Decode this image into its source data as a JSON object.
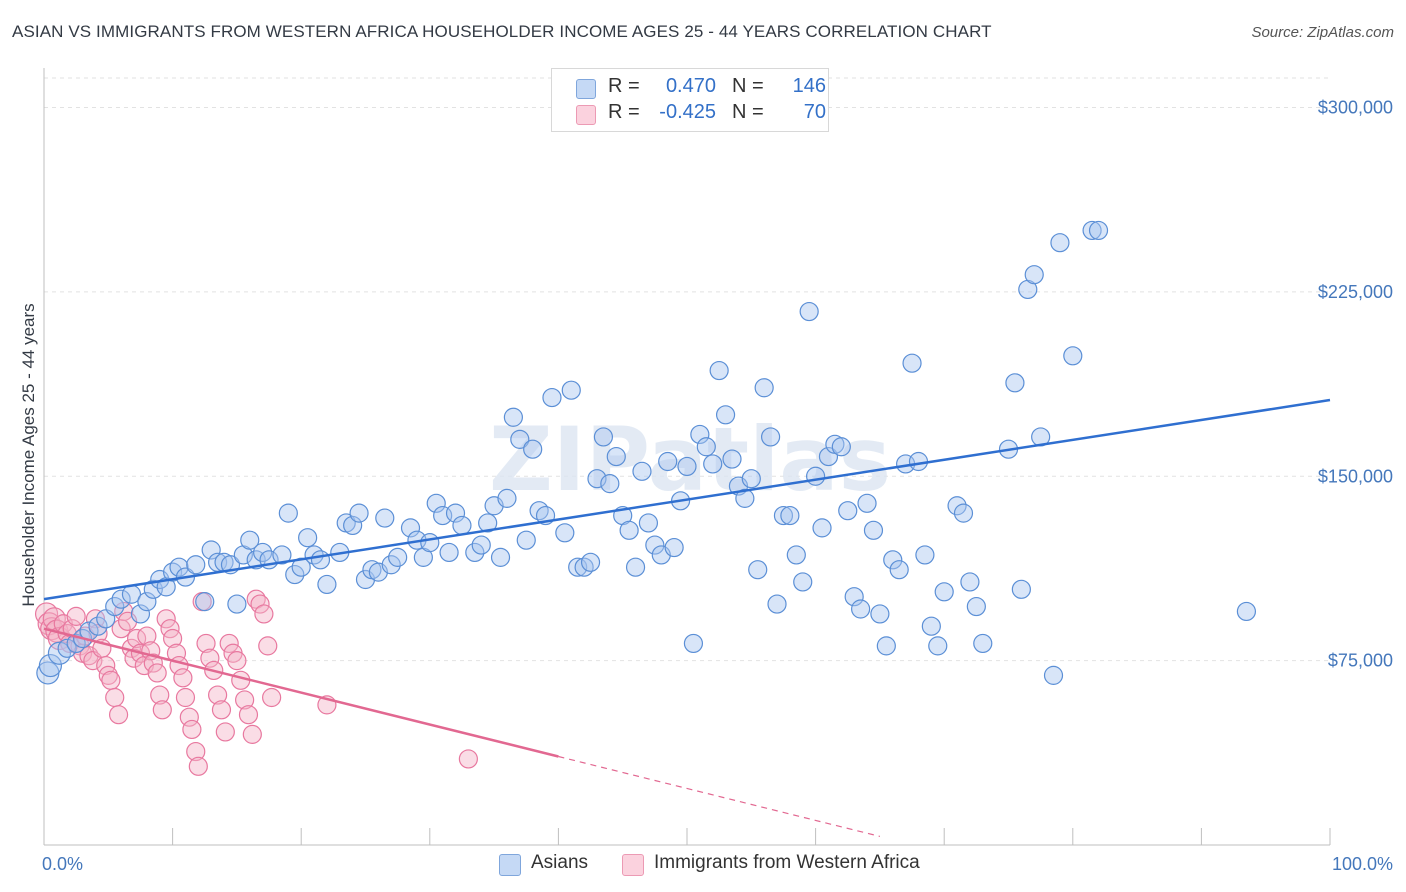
{
  "title": "ASIAN VS IMMIGRANTS FROM WESTERN AFRICA HOUSEHOLDER INCOME AGES 25 - 44 YEARS CORRELATION CHART",
  "source": "Source: ZipAtlas.com",
  "watermark": "ZIPatlas",
  "legend": {
    "rows": [
      {
        "r_label": "R =",
        "r_value": "0.470",
        "n_label": "N =",
        "n_value": "146",
        "color": "#a9c6ef"
      },
      {
        "r_label": "R =",
        "r_value": "-0.425",
        "n_label": "N =",
        "n_value": "70",
        "color": "#f5b3c7"
      }
    ]
  },
  "chart_data": {
    "type": "scatter",
    "xlabel": "",
    "ylabel": "Householder Income Ages 25 - 44 years",
    "xlim": [
      0,
      100
    ],
    "ylim": [
      0,
      312000
    ],
    "y_ticks": [
      {
        "value": 75000,
        "label": "$75,000"
      },
      {
        "value": 150000,
        "label": "$150,000"
      },
      {
        "value": 225000,
        "label": "$225,000"
      },
      {
        "value": 300000,
        "label": "$300,000"
      }
    ],
    "x_tick_labels": {
      "left": "0.0%",
      "right": "100.0%"
    },
    "x_tick_positions": [
      0,
      10,
      20,
      30,
      40,
      50,
      60,
      70,
      80,
      90,
      100
    ],
    "grid": true,
    "legend_position": "bottom-center",
    "series": [
      {
        "name": "Asians",
        "color": "#5b8fd6",
        "fill": "#a9c6ef",
        "trend": {
          "x": [
            0,
            100
          ],
          "y": [
            100000,
            181000
          ],
          "color": "#2f6fd0"
        },
        "points": [
          [
            0.3,
            70000
          ],
          [
            0.5,
            73000
          ],
          [
            1.2,
            78000
          ],
          [
            1.8,
            80000
          ],
          [
            2.5,
            82000
          ],
          [
            3.0,
            84000
          ],
          [
            3.5,
            87000
          ],
          [
            4.2,
            89000
          ],
          [
            4.8,
            92000
          ],
          [
            5.5,
            97000
          ],
          [
            6.0,
            100000
          ],
          [
            6.8,
            102000
          ],
          [
            7.5,
            94000
          ],
          [
            8.0,
            99000
          ],
          [
            8.5,
            104000
          ],
          [
            9.0,
            108000
          ],
          [
            9.5,
            105000
          ],
          [
            10.0,
            111000
          ],
          [
            10.5,
            113000
          ],
          [
            11.0,
            109000
          ],
          [
            11.8,
            114000
          ],
          [
            12.5,
            99000
          ],
          [
            13.0,
            120000
          ],
          [
            13.5,
            115000
          ],
          [
            14.0,
            115000
          ],
          [
            14.5,
            114000
          ],
          [
            15.0,
            98000
          ],
          [
            15.5,
            118000
          ],
          [
            16.0,
            124000
          ],
          [
            16.5,
            116000
          ],
          [
            17.0,
            119000
          ],
          [
            17.5,
            116000
          ],
          [
            18.5,
            118000
          ],
          [
            19.0,
            135000
          ],
          [
            19.5,
            110000
          ],
          [
            20.0,
            113000
          ],
          [
            20.5,
            125000
          ],
          [
            21.0,
            118000
          ],
          [
            21.5,
            116000
          ],
          [
            22.0,
            106000
          ],
          [
            23.0,
            119000
          ],
          [
            23.5,
            131000
          ],
          [
            24.0,
            130000
          ],
          [
            24.5,
            135000
          ],
          [
            25.0,
            108000
          ],
          [
            25.5,
            112000
          ],
          [
            26.0,
            111000
          ],
          [
            26.5,
            133000
          ],
          [
            27.0,
            114000
          ],
          [
            27.5,
            117000
          ],
          [
            28.5,
            129000
          ],
          [
            29.0,
            124000
          ],
          [
            29.5,
            117000
          ],
          [
            30.0,
            123000
          ],
          [
            30.5,
            139000
          ],
          [
            31.0,
            134000
          ],
          [
            31.5,
            119000
          ],
          [
            32.0,
            135000
          ],
          [
            32.5,
            130000
          ],
          [
            33.5,
            119000
          ],
          [
            34.0,
            122000
          ],
          [
            34.5,
            131000
          ],
          [
            35.0,
            138000
          ],
          [
            35.5,
            117000
          ],
          [
            36.0,
            141000
          ],
          [
            36.5,
            174000
          ],
          [
            37.0,
            165000
          ],
          [
            37.5,
            124000
          ],
          [
            38.0,
            161000
          ],
          [
            38.5,
            136000
          ],
          [
            39.0,
            134000
          ],
          [
            39.5,
            182000
          ],
          [
            40.5,
            127000
          ],
          [
            41.0,
            185000
          ],
          [
            41.5,
            113000
          ],
          [
            42.0,
            113000
          ],
          [
            42.5,
            115000
          ],
          [
            43.0,
            149000
          ],
          [
            43.5,
            166000
          ],
          [
            44.0,
            147000
          ],
          [
            44.5,
            158000
          ],
          [
            45.0,
            134000
          ],
          [
            45.5,
            128000
          ],
          [
            46.0,
            113000
          ],
          [
            46.5,
            152000
          ],
          [
            47.0,
            131000
          ],
          [
            47.5,
            122000
          ],
          [
            48.0,
            118000
          ],
          [
            48.5,
            156000
          ],
          [
            49.0,
            121000
          ],
          [
            49.5,
            140000
          ],
          [
            50.0,
            154000
          ],
          [
            50.5,
            82000
          ],
          [
            51.0,
            167000
          ],
          [
            51.5,
            162000
          ],
          [
            52.0,
            155000
          ],
          [
            52.5,
            193000
          ],
          [
            53.0,
            175000
          ],
          [
            53.5,
            157000
          ],
          [
            54.0,
            146000
          ],
          [
            54.5,
            141000
          ],
          [
            55.0,
            149000
          ],
          [
            55.5,
            112000
          ],
          [
            56.0,
            186000
          ],
          [
            56.5,
            166000
          ],
          [
            57.0,
            98000
          ],
          [
            57.5,
            134000
          ],
          [
            58.0,
            134000
          ],
          [
            58.5,
            118000
          ],
          [
            59.0,
            107000
          ],
          [
            59.5,
            217000
          ],
          [
            60.0,
            150000
          ],
          [
            60.5,
            129000
          ],
          [
            61.0,
            158000
          ],
          [
            61.5,
            163000
          ],
          [
            62.0,
            162000
          ],
          [
            62.5,
            136000
          ],
          [
            63.0,
            101000
          ],
          [
            63.5,
            96000
          ],
          [
            64.0,
            139000
          ],
          [
            64.5,
            128000
          ],
          [
            65.0,
            94000
          ],
          [
            65.5,
            81000
          ],
          [
            66.0,
            116000
          ],
          [
            66.5,
            112000
          ],
          [
            67.0,
            155000
          ],
          [
            67.5,
            196000
          ],
          [
            68.0,
            156000
          ],
          [
            68.5,
            118000
          ],
          [
            69.0,
            89000
          ],
          [
            69.5,
            81000
          ],
          [
            70.0,
            103000
          ],
          [
            71.0,
            138000
          ],
          [
            71.5,
            135000
          ],
          [
            72.0,
            107000
          ],
          [
            72.5,
            97000
          ],
          [
            73.0,
            82000
          ],
          [
            75.0,
            161000
          ],
          [
            75.5,
            188000
          ],
          [
            76.0,
            104000
          ],
          [
            76.5,
            226000
          ],
          [
            77.0,
            232000
          ],
          [
            77.5,
            166000
          ],
          [
            78.5,
            69000
          ],
          [
            79.0,
            245000
          ],
          [
            80.0,
            199000
          ],
          [
            81.5,
            250000
          ],
          [
            82.0,
            250000
          ],
          [
            93.5,
            95000
          ]
        ]
      },
      {
        "name": "Immigrants from Western Africa",
        "color": "#e8789f",
        "fill": "#f5b3c7",
        "trend": {
          "x": [
            0,
            40
          ],
          "y": [
            88000,
            36000
          ],
          "color": "#e26891",
          "dash_extension_to_x": 65
        },
        "points": [
          [
            0.2,
            94000
          ],
          [
            0.4,
            90000
          ],
          [
            0.6,
            88000
          ],
          [
            0.8,
            92000
          ],
          [
            1.0,
            87000
          ],
          [
            1.2,
            84000
          ],
          [
            1.5,
            90000
          ],
          [
            1.8,
            86000
          ],
          [
            2.0,
            82000
          ],
          [
            2.2,
            88000
          ],
          [
            2.5,
            93000
          ],
          [
            2.8,
            81000
          ],
          [
            3.0,
            78000
          ],
          [
            3.2,
            85000
          ],
          [
            3.5,
            77000
          ],
          [
            3.8,
            75000
          ],
          [
            4.0,
            92000
          ],
          [
            4.2,
            86000
          ],
          [
            4.5,
            80000
          ],
          [
            4.8,
            73000
          ],
          [
            5.0,
            69000
          ],
          [
            5.2,
            67000
          ],
          [
            5.5,
            60000
          ],
          [
            5.8,
            53000
          ],
          [
            6.0,
            88000
          ],
          [
            6.2,
            95000
          ],
          [
            6.5,
            91000
          ],
          [
            6.8,
            80000
          ],
          [
            7.0,
            76000
          ],
          [
            7.2,
            84000
          ],
          [
            7.5,
            78000
          ],
          [
            7.8,
            73000
          ],
          [
            8.0,
            85000
          ],
          [
            8.3,
            79000
          ],
          [
            8.5,
            74000
          ],
          [
            8.8,
            70000
          ],
          [
            9.0,
            61000
          ],
          [
            9.2,
            55000
          ],
          [
            9.5,
            92000
          ],
          [
            9.8,
            88000
          ],
          [
            10.0,
            84000
          ],
          [
            10.3,
            78000
          ],
          [
            10.5,
            73000
          ],
          [
            10.8,
            68000
          ],
          [
            11.0,
            60000
          ],
          [
            11.3,
            52000
          ],
          [
            11.5,
            47000
          ],
          [
            11.8,
            38000
          ],
          [
            12.0,
            32000
          ],
          [
            12.3,
            99000
          ],
          [
            12.6,
            82000
          ],
          [
            12.9,
            76000
          ],
          [
            13.2,
            71000
          ],
          [
            13.5,
            61000
          ],
          [
            13.8,
            55000
          ],
          [
            14.1,
            46000
          ],
          [
            14.4,
            82000
          ],
          [
            14.7,
            78000
          ],
          [
            15.0,
            75000
          ],
          [
            15.3,
            67000
          ],
          [
            15.6,
            59000
          ],
          [
            15.9,
            53000
          ],
          [
            16.2,
            45000
          ],
          [
            16.5,
            100000
          ],
          [
            16.8,
            98000
          ],
          [
            17.1,
            94000
          ],
          [
            17.4,
            81000
          ],
          [
            17.7,
            60000
          ],
          [
            22.0,
            57000
          ],
          [
            33.0,
            35000
          ]
        ]
      }
    ]
  }
}
